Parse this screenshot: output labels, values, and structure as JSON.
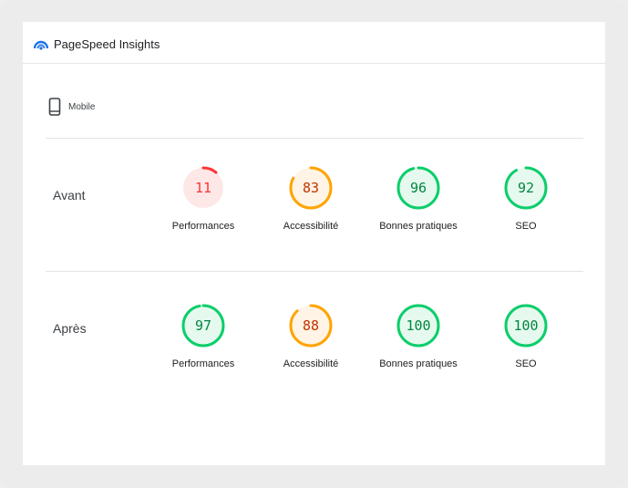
{
  "app": {
    "title": "PageSpeed Insights",
    "logo_icon": "pagespeed-logo-icon"
  },
  "device": {
    "label": "Mobile",
    "icon": "mobile-phone-icon"
  },
  "colors": {
    "fail": "#ff3333",
    "fail_bg": "#fde7e7",
    "average": "#ffa400",
    "average_text": "#c33300",
    "average_bg": "#fff4e5",
    "pass": "#0cce6b",
    "pass_text": "#018642",
    "pass_bg": "#e6f9ee"
  },
  "rows": [
    {
      "label": "Avant",
      "scores": [
        {
          "category": "Performances",
          "value": 11,
          "rating": "fail"
        },
        {
          "category": "Accessibilité",
          "value": 83,
          "rating": "average"
        },
        {
          "category": "Bonnes pratiques",
          "value": 96,
          "rating": "pass"
        },
        {
          "category": "SEO",
          "value": 92,
          "rating": "pass"
        }
      ]
    },
    {
      "label": "Après",
      "scores": [
        {
          "category": "Performances",
          "value": 97,
          "rating": "pass"
        },
        {
          "category": "Accessibilité",
          "value": 88,
          "rating": "average"
        },
        {
          "category": "Bonnes pratiques",
          "value": 100,
          "rating": "pass"
        },
        {
          "category": "SEO",
          "value": 100,
          "rating": "pass"
        }
      ]
    }
  ]
}
